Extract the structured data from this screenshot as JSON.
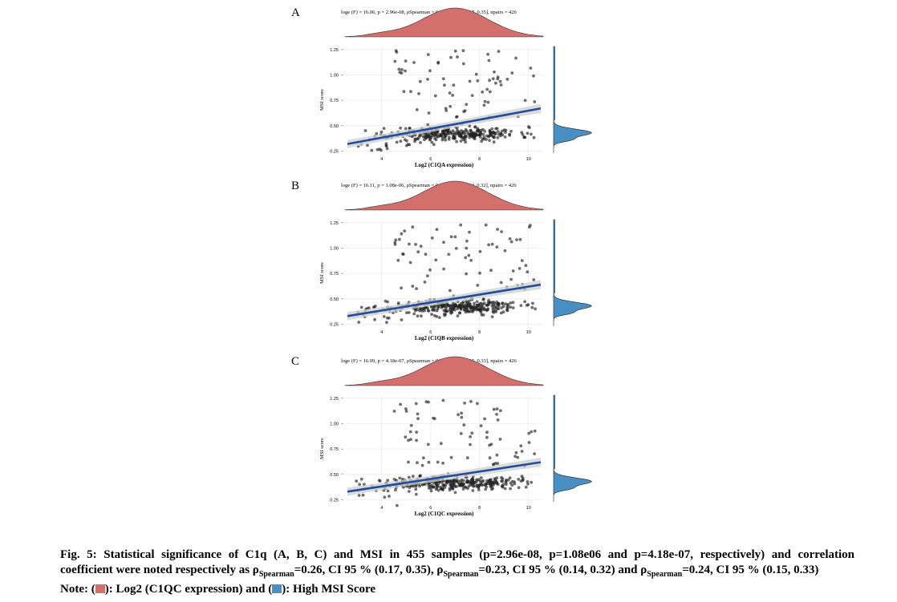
{
  "chart_data": [
    {
      "panel_label": "A",
      "type": "scatter",
      "subtitle": "loge (F) = 16.06, p = 2.96e-08, ρSpearman = 0.26, CI95% [0.17, 0.35], npairs = 426",
      "xlabel": "Log2 (C1QA expression)",
      "ylabel": "MSI score",
      "x_ticks": [
        "4",
        "6",
        "8",
        "10"
      ],
      "y_ticks": [
        "0.25",
        "0.50",
        "0.75",
        "1.00",
        "1.25"
      ],
      "xlim": [
        2.5,
        10.6
      ],
      "ylim": [
        0.23,
        1.28
      ],
      "regression": {
        "x": [
          2.6,
          10.5
        ],
        "y": [
          0.32,
          0.67
        ]
      },
      "marginal_x": "top density, red",
      "marginal_y": "right density, blue",
      "seed": 11,
      "grid": true
    },
    {
      "panel_label": "B",
      "type": "scatter",
      "subtitle": "loge (F) = 16.11, p = 1.08e-06, ρSpearman = 0.23, CI95% [0.14, 0.32], npairs = 426",
      "xlabel": "Log2 (C1QB expression)",
      "ylabel": "MSI score",
      "x_ticks": [
        "4",
        "6",
        "8",
        "10"
      ],
      "y_ticks": [
        "0.25",
        "0.50",
        "0.75",
        "1.00",
        "1.25"
      ],
      "xlim": [
        2.5,
        10.6
      ],
      "ylim": [
        0.23,
        1.28
      ],
      "regression": {
        "x": [
          2.6,
          10.5
        ],
        "y": [
          0.33,
          0.64
        ]
      },
      "marginal_x": "top density, red",
      "marginal_y": "right density, blue",
      "seed": 23,
      "grid": true
    },
    {
      "panel_label": "C",
      "type": "scatter",
      "subtitle": "loge (F) = 16.09, p = 4.18e-07, ρSpearman = 0.24, CI95% [0.15, 0.33], npairs = 426",
      "xlabel": "Log2 (C1QC expression)",
      "ylabel": "MSI score",
      "x_ticks": [
        "4",
        "6",
        "8",
        "10"
      ],
      "y_ticks": [
        "0.25",
        "0.50",
        "0.75",
        "1.00",
        "1.25"
      ],
      "xlim": [
        2.5,
        10.6
      ],
      "ylim": [
        0.23,
        1.28
      ],
      "regression": {
        "x": [
          2.6,
          10.5
        ],
        "y": [
          0.33,
          0.62
        ]
      },
      "marginal_x": "top density, red",
      "marginal_y": "right density, blue",
      "seed": 37,
      "grid": true
    }
  ],
  "colors": {
    "density_x": "#d4706b",
    "density_y": "#4a8fc4",
    "regression_line": "#1f4e9c",
    "confidence_band": "#cfcfcf",
    "points": "#222222"
  },
  "caption": {
    "line1": "Fig. 5: Statistical significance of C1q (A, B, C) and MSI in 455 samples (p=2.96e-08, p=1.08e06 and p=4.18e-07, respectively) and correlation",
    "line2_a": "coefficient were noted respectively as ρ",
    "sub": "Spearman",
    "line2_b": "=0.26, CI 95 % (0.17, 0.35), ρ",
    "line2_c": "=0.23, CI 95 % (0.14, 0.32) and ρ",
    "line2_d": "=0.24, CI 95 % (0.15, 0.33)",
    "note_prefix": "Note: (",
    "note_mid": "): Log2 (C1QC expression) and (",
    "note_end": "): High MSI Score"
  }
}
